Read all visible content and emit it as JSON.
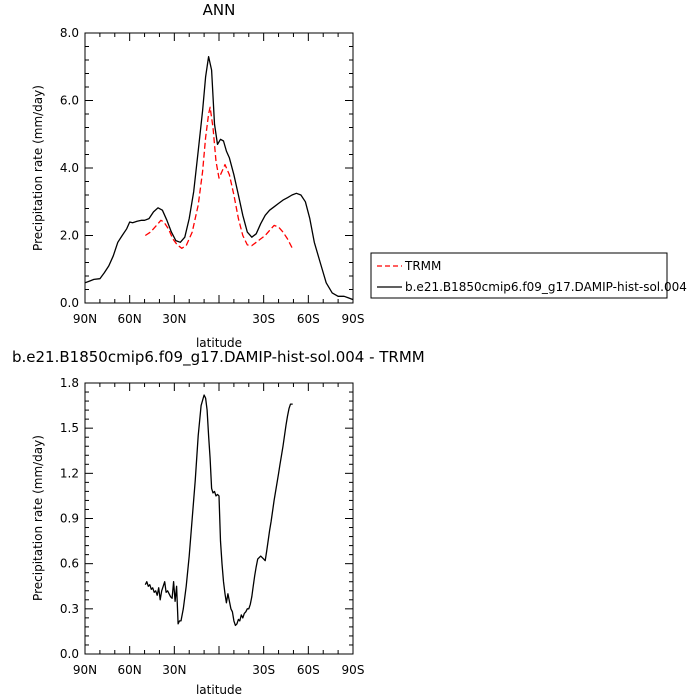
{
  "chart_data": [
    {
      "type": "line",
      "title": "ANN",
      "xlabel": "latitude",
      "ylabel": "Precipitation rate (mm/day)",
      "xlim": [
        90,
        -90
      ],
      "ylim": [
        0,
        8
      ],
      "xticks": [
        90,
        60,
        30,
        0,
        -30,
        -60,
        -90
      ],
      "xtick_labels": [
        "90N",
        "60N",
        "30N",
        "",
        "30S",
        "60S",
        "90S"
      ],
      "yticks": [
        0,
        2,
        4,
        6,
        8
      ],
      "ytick_labels": [
        "0.0",
        "2.0",
        "4.0",
        "6.0",
        "8.0"
      ],
      "legend": {
        "position": "right",
        "entries": [
          "TRMM",
          "b.e21.B1850cmip6.f09_g17.DAMIP-hist-sol.004"
        ]
      },
      "series": [
        {
          "name": "TRMM",
          "color": "#ff0000",
          "dashed": true,
          "x": [
            49.5,
            46,
            42,
            39,
            37,
            34,
            31,
            28,
            25,
            22,
            18,
            14,
            11,
            9,
            7,
            6,
            4,
            2,
            0,
            -2,
            -4,
            -7,
            -10,
            -13,
            -16,
            -19,
            -22,
            -25,
            -28,
            -31,
            -34,
            -37,
            -40,
            -43,
            -46,
            -49.5
          ],
          "y": [
            2.0,
            2.1,
            2.3,
            2.45,
            2.4,
            2.2,
            1.9,
            1.72,
            1.62,
            1.7,
            2.1,
            2.9,
            3.9,
            4.9,
            5.6,
            5.8,
            5.2,
            4.2,
            3.7,
            3.9,
            4.1,
            3.8,
            3.2,
            2.5,
            2.0,
            1.72,
            1.7,
            1.8,
            1.9,
            2.0,
            2.15,
            2.3,
            2.25,
            2.1,
            1.9,
            1.6
          ]
        },
        {
          "name": "b.e21.B1850cmip6.f09_g17.DAMIP-hist-sol.004",
          "color": "#000000",
          "dashed": false,
          "x": [
            90,
            87,
            84,
            80,
            77,
            74,
            71,
            68,
            65,
            62,
            60,
            58,
            55,
            52,
            50,
            47,
            44,
            41,
            38,
            35,
            32,
            29,
            26,
            23,
            20,
            17,
            14,
            11,
            9,
            7,
            5,
            3,
            1,
            -1,
            -3,
            -5,
            -7,
            -10,
            -13,
            -16,
            -19,
            -22,
            -25,
            -28,
            -31,
            -34,
            -37,
            -40,
            -43,
            -46,
            -49,
            -52,
            -55,
            -58,
            -61,
            -64,
            -68,
            -72,
            -76,
            -80,
            -84,
            -87,
            -90
          ],
          "y": [
            0.6,
            0.65,
            0.7,
            0.72,
            0.9,
            1.1,
            1.4,
            1.8,
            2.0,
            2.2,
            2.4,
            2.38,
            2.42,
            2.45,
            2.45,
            2.5,
            2.7,
            2.82,
            2.75,
            2.45,
            2.1,
            1.85,
            1.8,
            1.95,
            2.5,
            3.3,
            4.5,
            5.7,
            6.7,
            7.3,
            6.9,
            5.3,
            4.7,
            4.85,
            4.8,
            4.5,
            4.3,
            3.8,
            3.2,
            2.6,
            2.1,
            1.95,
            2.05,
            2.35,
            2.6,
            2.75,
            2.85,
            2.95,
            3.05,
            3.12,
            3.2,
            3.25,
            3.2,
            3.0,
            2.5,
            1.8,
            1.2,
            0.6,
            0.3,
            0.2,
            0.2,
            0.15,
            0.1
          ]
        }
      ]
    },
    {
      "type": "line",
      "title": "b.e21.B1850cmip6.f09_g17.DAMIP-hist-sol.004 - TRMM",
      "xlabel": "latitude",
      "ylabel": "Precipitation rate (mm/day)",
      "xlim": [
        90,
        -90
      ],
      "ylim": [
        0,
        1.8
      ],
      "xticks": [
        90,
        60,
        30,
        0,
        -30,
        -60,
        -90
      ],
      "xtick_labels": [
        "90N",
        "60N",
        "30N",
        "",
        "30S",
        "60S",
        "90S"
      ],
      "yticks": [
        0,
        0.3,
        0.6,
        0.9,
        1.2,
        1.5,
        1.8
      ],
      "ytick_labels": [
        "0.0",
        "0.3",
        "0.6",
        "0.9",
        "1.2",
        "1.5",
        "1.8"
      ],
      "series": [
        {
          "color": "#000000",
          "dashed": false,
          "x": [
            49.5,
            48.5,
            47.5,
            46.5,
            45.5,
            44.5,
            43.5,
            42.5,
            41.5,
            40.5,
            39.5,
            38.5,
            37.5,
            36.5,
            35.5,
            34.5,
            33.5,
            32.5,
            31.5,
            30.5,
            29.5,
            28.5,
            27.5,
            26.5,
            25.5,
            24,
            22,
            20,
            18,
            16,
            14,
            12,
            10,
            9,
            8,
            7,
            6,
            5,
            4,
            3,
            2,
            1,
            0,
            -1,
            -2,
            -3,
            -4,
            -5,
            -6,
            -7,
            -8,
            -9,
            -10,
            -11,
            -12,
            -13,
            -14,
            -15,
            -16,
            -17,
            -18,
            -19,
            -20,
            -21,
            -22,
            -23,
            -24,
            -25,
            -26,
            -27,
            -28,
            -29,
            -30,
            -31,
            -32,
            -33,
            -34,
            -35,
            -36,
            -37,
            -38,
            -39,
            -40,
            -41,
            -42,
            -43,
            -44,
            -45,
            -46,
            -47,
            -48,
            -49,
            -49.5
          ],
          "y": [
            0.46,
            0.48,
            0.45,
            0.46,
            0.43,
            0.44,
            0.41,
            0.42,
            0.39,
            0.44,
            0.36,
            0.42,
            0.45,
            0.48,
            0.41,
            0.42,
            0.4,
            0.38,
            0.37,
            0.48,
            0.35,
            0.45,
            0.2,
            0.22,
            0.22,
            0.3,
            0.45,
            0.65,
            0.9,
            1.15,
            1.45,
            1.65,
            1.72,
            1.7,
            1.62,
            1.45,
            1.3,
            1.1,
            1.07,
            1.08,
            1.05,
            1.06,
            1.05,
            0.75,
            0.6,
            0.48,
            0.4,
            0.34,
            0.4,
            0.35,
            0.3,
            0.28,
            0.22,
            0.19,
            0.2,
            0.23,
            0.22,
            0.26,
            0.24,
            0.27,
            0.28,
            0.3,
            0.3,
            0.33,
            0.38,
            0.45,
            0.52,
            0.58,
            0.63,
            0.64,
            0.65,
            0.64,
            0.63,
            0.62,
            0.68,
            0.75,
            0.82,
            0.88,
            0.95,
            1.02,
            1.08,
            1.14,
            1.2,
            1.26,
            1.32,
            1.38,
            1.45,
            1.52,
            1.58,
            1.63,
            1.66,
            1.66,
            1.66
          ]
        }
      ]
    }
  ]
}
